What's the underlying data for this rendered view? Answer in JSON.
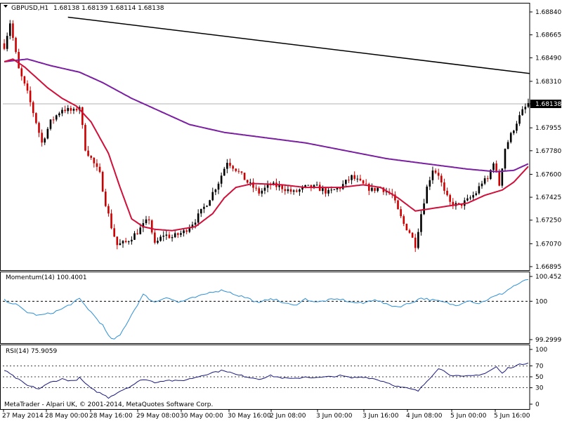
{
  "header": {
    "symbol_label": "GBPUSD,H1",
    "ohlc": "1.68138 1.68139 1.68114 1.68138",
    "momentum_label": "Momentum(14) 100.4001",
    "rsi_label": "RSI(14) 75.9059",
    "copyright": "MetaTrader - Alpari UK, © 2001-2014, MetaQuotes Software Corp."
  },
  "colors": {
    "bull": "#000000",
    "bear": "#cc0000",
    "sma_fast": "#d0103a",
    "sma_slow": "#7b1fa2",
    "trend": "#000000",
    "momentum": "#2b8fd6",
    "rsi": "#1a1a80",
    "price_tag_bg": "#000000",
    "price_tag_fg": "#ffffff"
  },
  "chart_data": [
    {
      "type": "candlestick",
      "title": "GBPUSD,H1",
      "ylim": [
        1.66895,
        1.6884
      ],
      "y_ticks": [
        "1.68840",
        "1.68665",
        "1.68490",
        "1.68310",
        "1.68138",
        "1.67955",
        "1.67780",
        "1.67600",
        "1.67425",
        "1.67250",
        "1.67070",
        "1.66895"
      ],
      "current_price": "1.68138",
      "x_labels": [
        "27 May 2014",
        "28 May 00:00",
        "28 May 16:00",
        "29 May 08:00",
        "30 May 00:00",
        "30 May 16:00",
        "2 Jun 08:00",
        "3 Jun 00:00",
        "3 Jun 16:00",
        "4 Jun 08:00",
        "5 Jun 00:00",
        "5 Jun 16:00"
      ],
      "anchors": [
        [
          0,
          1.6858
        ],
        [
          2,
          1.6876
        ],
        [
          5,
          1.684
        ],
        [
          8,
          1.6822
        ],
        [
          11,
          1.68
        ],
        [
          13,
          1.6784
        ],
        [
          16,
          1.68
        ],
        [
          20,
          1.681
        ],
        [
          24,
          1.6808
        ],
        [
          26,
          1.6812
        ],
        [
          28,
          1.678
        ],
        [
          30,
          1.6772
        ],
        [
          33,
          1.676
        ],
        [
          35,
          1.6738
        ],
        [
          37,
          1.672
        ],
        [
          39,
          1.6706
        ],
        [
          42,
          1.6708
        ],
        [
          46,
          1.6716
        ],
        [
          50,
          1.6726
        ],
        [
          52,
          1.6706
        ],
        [
          55,
          1.6714
        ],
        [
          58,
          1.6712
        ],
        [
          62,
          1.6716
        ],
        [
          66,
          1.6725
        ],
        [
          70,
          1.6738
        ],
        [
          74,
          1.6754
        ],
        [
          77,
          1.677
        ],
        [
          80,
          1.6764
        ],
        [
          84,
          1.6754
        ],
        [
          88,
          1.6746
        ],
        [
          92,
          1.6752
        ],
        [
          96,
          1.675
        ],
        [
          100,
          1.6746
        ],
        [
          104,
          1.675
        ],
        [
          108,
          1.675
        ],
        [
          112,
          1.6746
        ],
        [
          116,
          1.675
        ],
        [
          120,
          1.6758
        ],
        [
          124,
          1.6752
        ],
        [
          127,
          1.6748
        ],
        [
          130,
          1.675
        ],
        [
          134,
          1.6744
        ],
        [
          136,
          1.6732
        ],
        [
          138,
          1.6722
        ],
        [
          140,
          1.6716
        ],
        [
          142,
          1.6706
        ],
        [
          144,
          1.673
        ],
        [
          146,
          1.675
        ],
        [
          148,
          1.6764
        ],
        [
          150,
          1.676
        ],
        [
          152,
          1.6746
        ],
        [
          154,
          1.6738
        ],
        [
          157,
          1.6736
        ],
        [
          160,
          1.674
        ],
        [
          163,
          1.6746
        ],
        [
          165,
          1.6754
        ],
        [
          167,
          1.6756
        ],
        [
          169,
          1.677
        ],
        [
          171,
          1.6752
        ],
        [
          173,
          1.678
        ],
        [
          175,
          1.679
        ],
        [
          177,
          1.68
        ],
        [
          179,
          1.6808
        ],
        [
          181,
          1.6814
        ]
      ],
      "series": [
        {
          "name": "SMA fast",
          "anchors": [
            [
              0,
              1.6846
            ],
            [
              3,
              1.6848
            ],
            [
              7,
              1.6842
            ],
            [
              11,
              1.6834
            ],
            [
              15,
              1.6826
            ],
            [
              20,
              1.6818
            ],
            [
              25,
              1.6812
            ],
            [
              30,
              1.68
            ],
            [
              36,
              1.6776
            ],
            [
              40,
              1.675
            ],
            [
              44,
              1.6726
            ],
            [
              48,
              1.672
            ],
            [
              52,
              1.6718
            ],
            [
              58,
              1.6717
            ],
            [
              66,
              1.672
            ],
            [
              72,
              1.673
            ],
            [
              76,
              1.6742
            ],
            [
              80,
              1.675
            ],
            [
              86,
              1.6753
            ],
            [
              96,
              1.6752
            ],
            [
              104,
              1.675
            ],
            [
              116,
              1.675
            ],
            [
              124,
              1.6752
            ],
            [
              130,
              1.675
            ],
            [
              136,
              1.6742
            ],
            [
              142,
              1.6732
            ],
            [
              148,
              1.6734
            ],
            [
              154,
              1.6736
            ],
            [
              160,
              1.6738
            ],
            [
              166,
              1.6744
            ],
            [
              172,
              1.6748
            ],
            [
              176,
              1.6754
            ],
            [
              181,
              1.6766
            ]
          ]
        },
        {
          "name": "SMA slow",
          "anchors": [
            [
              0,
              1.6846
            ],
            [
              8,
              1.6848
            ],
            [
              16,
              1.6843
            ],
            [
              26,
              1.6838
            ],
            [
              34,
              1.683
            ],
            [
              44,
              1.6818
            ],
            [
              54,
              1.6808
            ],
            [
              64,
              1.6798
            ],
            [
              76,
              1.6792
            ],
            [
              90,
              1.6788
            ],
            [
              104,
              1.6784
            ],
            [
              118,
              1.6778
            ],
            [
              132,
              1.6772
            ],
            [
              146,
              1.6768
            ],
            [
              160,
              1.6764
            ],
            [
              170,
              1.6762
            ],
            [
              176,
              1.6763
            ],
            [
              181,
              1.6768
            ]
          ]
        },
        {
          "name": "Trend line",
          "points": [
            [
              22,
              1.688
            ],
            [
              181,
              1.6837
            ]
          ]
        }
      ]
    },
    {
      "type": "line",
      "title": "Momentum(14) 100.4001",
      "ylim": [
        99.2999,
        100.4525
      ],
      "y_ticks": [
        "100.4525",
        "100",
        "99.2999"
      ],
      "reference": 100,
      "anchors": [
        [
          0,
          100.02
        ],
        [
          4,
          99.94
        ],
        [
          8,
          99.8
        ],
        [
          12,
          99.74
        ],
        [
          16,
          99.78
        ],
        [
          20,
          99.86
        ],
        [
          24,
          99.98
        ],
        [
          26,
          100.04
        ],
        [
          30,
          99.8
        ],
        [
          34,
          99.56
        ],
        [
          36,
          99.36
        ],
        [
          38,
          99.3
        ],
        [
          40,
          99.38
        ],
        [
          44,
          99.76
        ],
        [
          46,
          99.94
        ],
        [
          48,
          100.12
        ],
        [
          52,
          99.98
        ],
        [
          56,
          100.08
        ],
        [
          60,
          99.98
        ],
        [
          64,
          100.04
        ],
        [
          68,
          100.1
        ],
        [
          72,
          100.18
        ],
        [
          76,
          100.2
        ],
        [
          80,
          100.12
        ],
        [
          84,
          100.06
        ],
        [
          88,
          99.96
        ],
        [
          92,
          100.06
        ],
        [
          96,
          99.98
        ],
        [
          100,
          99.92
        ],
        [
          104,
          100.04
        ],
        [
          108,
          99.98
        ],
        [
          112,
          100.02
        ],
        [
          116,
          100.04
        ],
        [
          120,
          99.98
        ],
        [
          124,
          99.96
        ],
        [
          128,
          100.04
        ],
        [
          132,
          99.94
        ],
        [
          136,
          99.9
        ],
        [
          140,
          99.96
        ],
        [
          144,
          100.06
        ],
        [
          148,
          100.02
        ],
        [
          152,
          99.98
        ],
        [
          156,
          99.92
        ],
        [
          160,
          100.02
        ],
        [
          164,
          99.96
        ],
        [
          168,
          100.06
        ],
        [
          172,
          100.14
        ],
        [
          176,
          100.28
        ],
        [
          181,
          100.4
        ]
      ]
    },
    {
      "type": "line",
      "title": "RSI(14) 75.9059",
      "ylim": [
        0,
        100
      ],
      "y_ticks": [
        "100",
        "70",
        "50",
        "30",
        "0"
      ],
      "anchors": [
        [
          0,
          62
        ],
        [
          4,
          48
        ],
        [
          8,
          34
        ],
        [
          12,
          28
        ],
        [
          16,
          40
        ],
        [
          20,
          46
        ],
        [
          24,
          42
        ],
        [
          26,
          48
        ],
        [
          30,
          28
        ],
        [
          34,
          18
        ],
        [
          36,
          12
        ],
        [
          40,
          24
        ],
        [
          44,
          34
        ],
        [
          48,
          46
        ],
        [
          52,
          40
        ],
        [
          56,
          44
        ],
        [
          60,
          42
        ],
        [
          64,
          46
        ],
        [
          68,
          52
        ],
        [
          72,
          58
        ],
        [
          76,
          62
        ],
        [
          80,
          54
        ],
        [
          84,
          50
        ],
        [
          88,
          46
        ],
        [
          92,
          52
        ],
        [
          96,
          48
        ],
        [
          100,
          46
        ],
        [
          104,
          50
        ],
        [
          108,
          48
        ],
        [
          112,
          50
        ],
        [
          116,
          52
        ],
        [
          120,
          48
        ],
        [
          124,
          50
        ],
        [
          128,
          46
        ],
        [
          132,
          40
        ],
        [
          136,
          32
        ],
        [
          140,
          28
        ],
        [
          143,
          24
        ],
        [
          146,
          42
        ],
        [
          150,
          66
        ],
        [
          154,
          54
        ],
        [
          158,
          50
        ],
        [
          162,
          52
        ],
        [
          166,
          56
        ],
        [
          170,
          68
        ],
        [
          172,
          56
        ],
        [
          174,
          66
        ],
        [
          178,
          72
        ],
        [
          181,
          76
        ]
      ]
    }
  ]
}
